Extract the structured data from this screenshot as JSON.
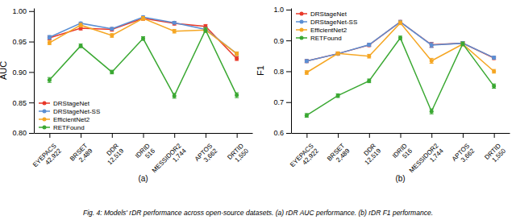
{
  "chart_data": [
    {
      "type": "line",
      "y_label": "AUC",
      "annotations": [
        "(a)"
      ],
      "categories": [
        "EYEPACS\n42,922",
        "BRSET\n2,489",
        "DDR\n12,519",
        "IDRID\n516",
        "MESSIDOR2\n1,744",
        "APTOS\n3,662",
        "DRTID\n1,550"
      ],
      "series": [
        {
          "name": "DRStageNet",
          "color": "#e8392a",
          "values": [
            0.956,
            0.972,
            0.97,
            0.988,
            0.98,
            0.975,
            0.922
          ],
          "errors": [
            0.003,
            0.003,
            0.003,
            0.003,
            0.003,
            0.003,
            0.003
          ]
        },
        {
          "name": "DRStageNet-SS",
          "color": "#5b8fd4",
          "values": [
            0.957,
            0.98,
            0.971,
            0.99,
            0.981,
            0.97,
            0.93
          ],
          "errors": [
            0.003,
            0.002,
            0.002,
            0.002,
            0.002,
            0.003,
            0.003
          ]
        },
        {
          "name": "EfficientNet2",
          "color": "#f5a623",
          "values": [
            0.948,
            0.977,
            0.96,
            0.988,
            0.967,
            0.969,
            0.93
          ],
          "errors": [
            0.003,
            0.003,
            0.003,
            0.003,
            0.003,
            0.003,
            0.003
          ]
        },
        {
          "name": "RETFound",
          "color": "#3aa832",
          "values": [
            0.887,
            0.943,
            0.9,
            0.955,
            0.861,
            0.969,
            0.862
          ],
          "errors": [
            0.004,
            0.003,
            0.003,
            0.003,
            0.004,
            0.004,
            0.004
          ]
        }
      ],
      "ylim": [
        0.8,
        1.005
      ],
      "yticks": [
        {
          "value": 0.8,
          "label": "0.80"
        },
        0.85,
        {
          "value": 0.9,
          "label": "0.90"
        },
        0.95,
        {
          "value": 1.0,
          "label": "1.00"
        }
      ],
      "marker": "circle",
      "legend": "lower left",
      "grid": false
    },
    {
      "type": "line",
      "y_label": "F1",
      "annotations": [
        "(b)"
      ],
      "categories": [
        "EYEPACS\n42,922",
        "BRSET\n2,489",
        "DDR\n12,519",
        "IDRID\n516",
        "MESSIDOR2\n1,744",
        "APTOS\n3,662",
        "DRTID\n1,550"
      ],
      "series": [
        {
          "name": "DRStageNet",
          "color": "#e8392a",
          "values": [
            0.833,
            0.857,
            0.885,
            0.96,
            0.886,
            0.891,
            0.843
          ],
          "errors": [
            0.005,
            0.005,
            0.005,
            0.005,
            0.008,
            0.005,
            0.005
          ]
        },
        {
          "name": "DRStageNet-SS",
          "color": "#5b8fd4",
          "values": [
            0.833,
            0.857,
            0.886,
            0.96,
            0.885,
            0.891,
            0.844
          ],
          "errors": [
            0.005,
            0.005,
            0.005,
            0.005,
            0.008,
            0.005,
            0.005
          ]
        },
        {
          "name": "EfficientNet2",
          "color": "#f5a623",
          "values": [
            0.796,
            0.858,
            0.849,
            0.957,
            0.834,
            0.888,
            0.8
          ],
          "errors": [
            0.006,
            0.005,
            0.006,
            0.006,
            0.008,
            0.006,
            0.006
          ]
        },
        {
          "name": "RETFound",
          "color": "#3aa832",
          "values": [
            0.657,
            0.721,
            0.769,
            0.908,
            0.67,
            0.889,
            0.752
          ],
          "errors": [
            0.006,
            0.006,
            0.006,
            0.006,
            0.008,
            0.006,
            0.007
          ]
        }
      ],
      "ylim": [
        0.6,
        1.005
      ],
      "yticks": [
        0.6,
        0.7,
        0.8,
        0.9,
        {
          "value": 1.0,
          "label": "1.0"
        }
      ],
      "marker": "circle",
      "legend": "upper left",
      "grid": false
    }
  ],
  "caption": "Fig. 4: Models' rDR performance across open-source datasets.  (a) rDR AUC performance.  (b) rDR F1 performance."
}
